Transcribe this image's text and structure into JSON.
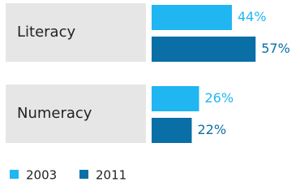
{
  "chart_data": {
    "type": "bar",
    "categories": [
      "Literacy",
      "Numeracy"
    ],
    "series": [
      {
        "name": "2003",
        "color": "#1fb6f2",
        "values": [
          44,
          26
        ],
        "value_labels": [
          "44%",
          "26%"
        ]
      },
      {
        "name": "2011",
        "color": "#0a6fa6",
        "values": [
          57,
          22
        ],
        "value_labels": [
          "57%",
          "22%"
        ]
      }
    ]
  }
}
